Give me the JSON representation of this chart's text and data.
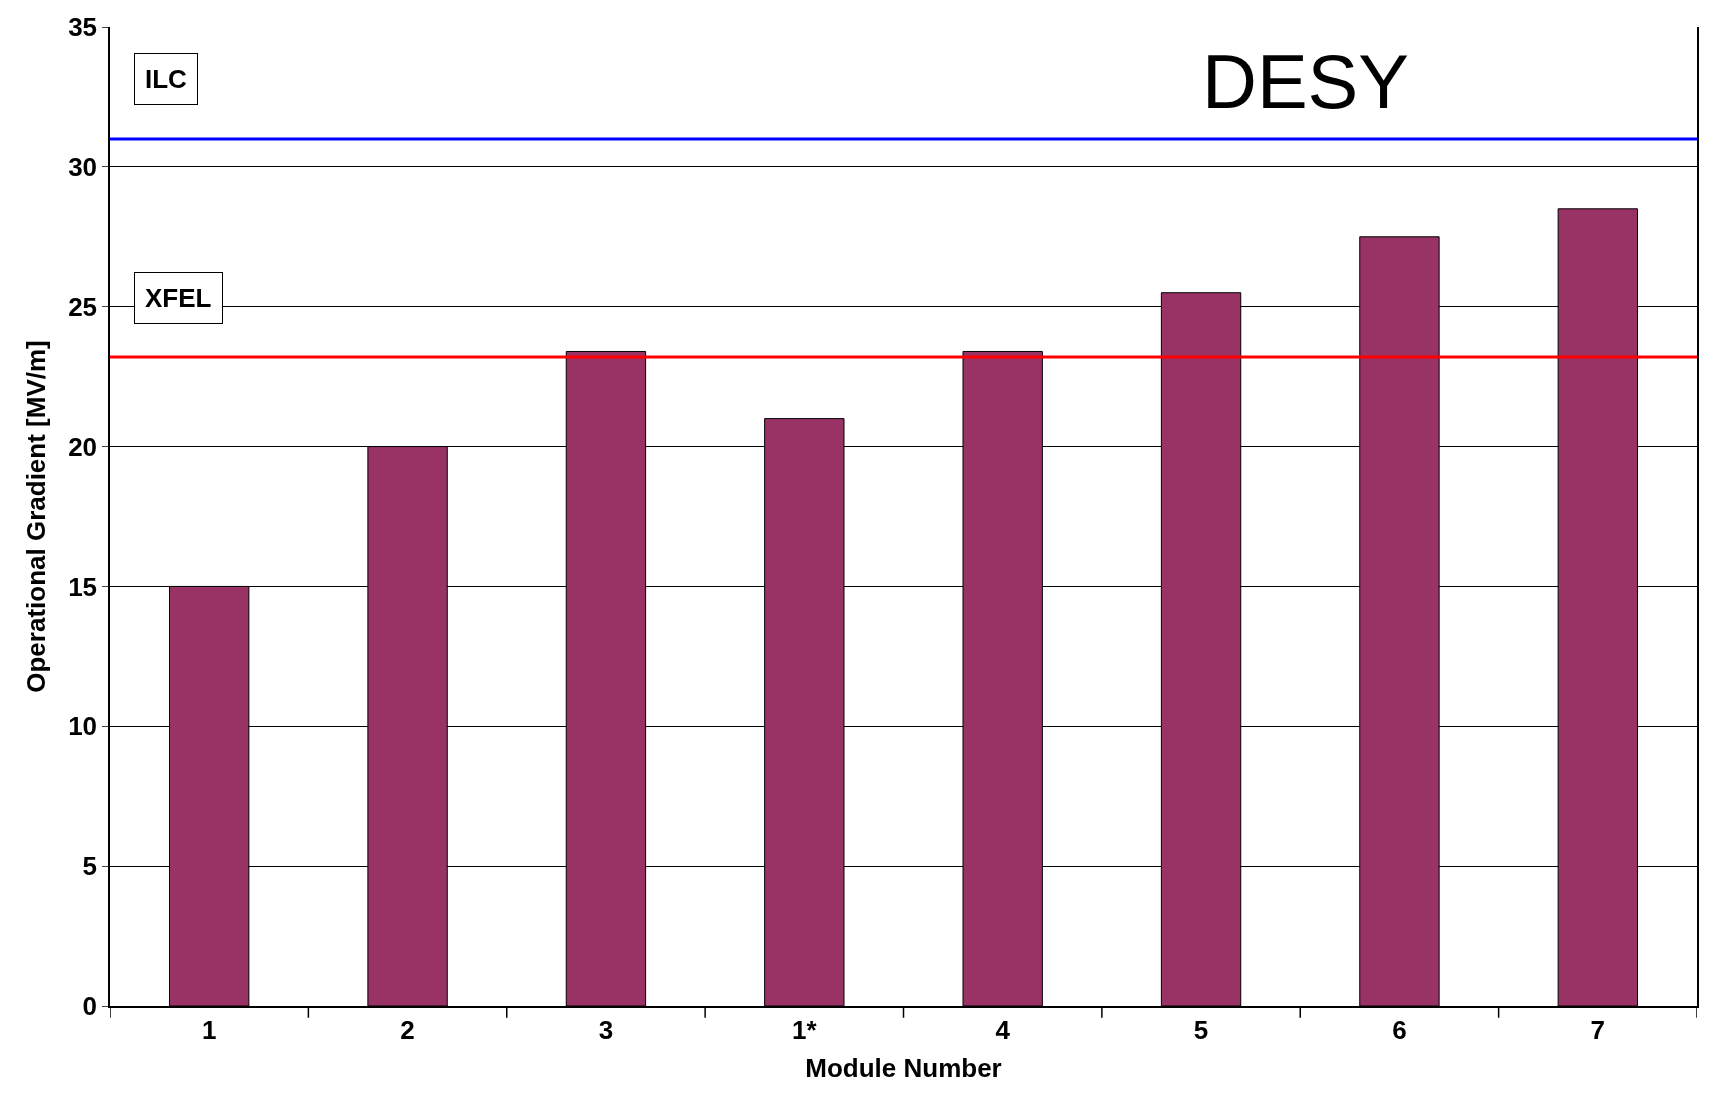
{
  "chart_data": {
    "type": "bar",
    "xlabel": "Module Number",
    "ylabel": "Operational Gradient [MV/m]",
    "categories": [
      "1",
      "2",
      "3",
      "1*",
      "4",
      "5",
      "6",
      "7"
    ],
    "series": [
      {
        "color": "#993366",
        "values": [
          15,
          20,
          23.4,
          21,
          23.4,
          25.5,
          27.5,
          28.5
        ]
      }
    ],
    "ylim": [
      0,
      35
    ],
    "yticks": [
      0,
      5,
      10,
      15,
      20,
      25,
      30,
      35
    ],
    "grid": "y",
    "ref_lines": [
      {
        "axis": "y",
        "value": 31,
        "label": "ILC",
        "color": "#0000ff"
      },
      {
        "axis": "y",
        "value": 23.2,
        "label": "XFEL",
        "color": "#ff0000"
      }
    ],
    "annotations": [
      "DESY"
    ]
  }
}
